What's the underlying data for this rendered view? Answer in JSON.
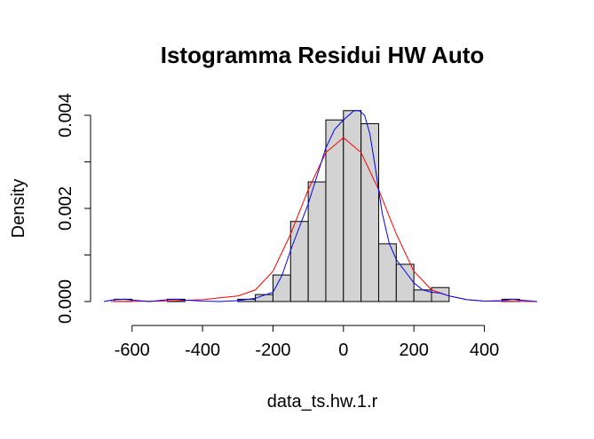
{
  "chart_data": {
    "type": "histogram",
    "title": "Istogramma Residui HW Auto",
    "xlabel": "data_ts.hw.1.r",
    "ylabel": "Density",
    "xlim": [
      -680,
      560
    ],
    "ylim": [
      0,
      0.0042
    ],
    "x_ticks": [
      -600,
      -400,
      -200,
      0,
      200,
      400
    ],
    "x_tick_labels": [
      "-600",
      "-400",
      "-200",
      "0",
      "200",
      "400"
    ],
    "y_ticks": [
      0.0,
      0.002,
      0.004
    ],
    "y_tick_labels": [
      "0.000",
      "0.002",
      "0.004"
    ],
    "bin_width": 50,
    "bars": [
      {
        "x0": -650,
        "x1": -600,
        "density": 5e-05
      },
      {
        "x0": -600,
        "x1": -550,
        "density": 0.0
      },
      {
        "x0": -550,
        "x1": -500,
        "density": 0.0
      },
      {
        "x0": -500,
        "x1": -450,
        "density": 5e-05
      },
      {
        "x0": -450,
        "x1": -400,
        "density": 0.0
      },
      {
        "x0": -400,
        "x1": -350,
        "density": 0.0
      },
      {
        "x0": -350,
        "x1": -300,
        "density": 0.0
      },
      {
        "x0": -300,
        "x1": -250,
        "density": 5e-05
      },
      {
        "x0": -250,
        "x1": -200,
        "density": 0.00015
      },
      {
        "x0": -200,
        "x1": -150,
        "density": 0.00057
      },
      {
        "x0": -150,
        "x1": -100,
        "density": 0.00172
      },
      {
        "x0": -100,
        "x1": -50,
        "density": 0.00257
      },
      {
        "x0": -50,
        "x1": 0,
        "density": 0.0039
      },
      {
        "x0": 0,
        "x1": 50,
        "density": 0.0041
      },
      {
        "x0": 50,
        "x1": 100,
        "density": 0.00382
      },
      {
        "x0": 100,
        "x1": 150,
        "density": 0.00124
      },
      {
        "x0": 150,
        "x1": 200,
        "density": 0.0008
      },
      {
        "x0": 200,
        "x1": 250,
        "density": 0.00025
      },
      {
        "x0": 250,
        "x1": 300,
        "density": 0.0003
      },
      {
        "x0": 300,
        "x1": 350,
        "density": 0.0
      },
      {
        "x0": 350,
        "x1": 400,
        "density": 0.0
      },
      {
        "x0": 400,
        "x1": 450,
        "density": 0.0
      },
      {
        "x0": 450,
        "x1": 500,
        "density": 5e-05
      }
    ],
    "series": [
      {
        "type": "line",
        "kind": "normal-curve",
        "color": "#ff0000",
        "x": [
          -660,
          -500,
          -400,
          -300,
          -250,
          -200,
          -150,
          -100,
          -50,
          0,
          50,
          100,
          150,
          200,
          250,
          300,
          350,
          400,
          550
        ],
        "values": [
          0.0,
          1e-05,
          4e-05,
          0.00012,
          0.00025,
          0.00065,
          0.00145,
          0.0024,
          0.0032,
          0.00352,
          0.0032,
          0.0024,
          0.00145,
          0.00065,
          0.00025,
          0.00012,
          4e-05,
          1e-05,
          0.0
        ]
      },
      {
        "type": "line",
        "kind": "kernel-density",
        "color": "#0000ff",
        "x": [
          -680,
          -650,
          -620,
          -600,
          -550,
          -500,
          -470,
          -450,
          -400,
          -350,
          -300,
          -250,
          -200,
          -175,
          -150,
          -125,
          -100,
          -75,
          -50,
          -25,
          0,
          15,
          30,
          45,
          60,
          75,
          90,
          110,
          130,
          150,
          175,
          200,
          225,
          250,
          275,
          300,
          350,
          400,
          450,
          480,
          500,
          550
        ],
        "values": [
          0.0,
          4e-05,
          5e-05,
          3e-05,
          0.0,
          4e-05,
          5e-05,
          3e-05,
          1e-05,
          0.0,
          2e-05,
          7e-05,
          0.0002,
          0.00055,
          0.0011,
          0.0016,
          0.0021,
          0.0027,
          0.0033,
          0.0037,
          0.0039,
          0.004,
          0.0041,
          0.0041,
          0.004,
          0.0036,
          0.0029,
          0.0019,
          0.00125,
          0.0009,
          0.00065,
          0.0004,
          0.00025,
          0.0002,
          0.00018,
          0.00012,
          4e-05,
          1e-05,
          2e-05,
          5e-05,
          3e-05,
          0.0
        ]
      }
    ],
    "colors": {
      "bar_fill": "#d3d3d3",
      "bar_stroke": "#000000",
      "axis": "#000000"
    },
    "grid": false
  }
}
